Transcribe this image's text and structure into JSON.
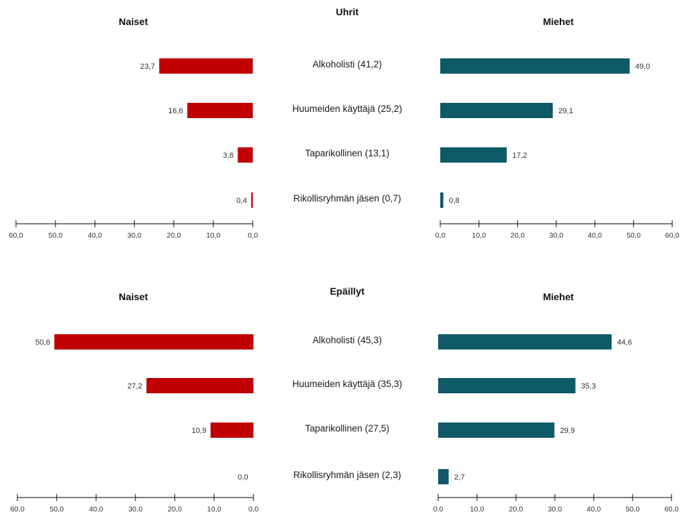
{
  "chart_data": [
    {
      "type": "bar",
      "title": "Uhrit",
      "categories": [
        "Alkoholisti (41,2)",
        "Huumeiden käyttäjä (25,2)",
        "Taparikollinen (13,1)",
        "Rikollisryhmän jäsen (0,7)"
      ],
      "left_panel": {
        "title": "Naiset",
        "values": [
          23.7,
          16.6,
          3.8,
          0.4
        ],
        "labels": [
          "23,7",
          "16,6",
          "3,8",
          "0,4"
        ],
        "color": "#c00000"
      },
      "right_panel": {
        "title": "Miehet",
        "values": [
          49.0,
          29.1,
          17.2,
          0.8
        ],
        "labels": [
          "49,0",
          "29,1",
          "17,2",
          "0,8"
        ],
        "color": "#0e5a66"
      },
      "xlim": [
        0,
        60
      ],
      "ticks": [
        "0,0",
        "10,0",
        "20,0",
        "30,0",
        "40,0",
        "50,0",
        "60,0"
      ]
    },
    {
      "type": "bar",
      "title": "Epäillyt",
      "categories": [
        "Alkoholisti (45,3)",
        "Huumeiden käyttäjä (35,3)",
        "Taparikollinen (27,5)",
        "Rikollisryhmän jäsen (2,3)"
      ],
      "left_panel": {
        "title": "Naiset",
        "values": [
          50.6,
          27.2,
          10.9,
          0.0
        ],
        "labels": [
          "50,6",
          "27,2",
          "10,9",
          "0,0"
        ],
        "color": "#c00000"
      },
      "right_panel": {
        "title": "Miehet",
        "values": [
          44.6,
          35.3,
          29.9,
          2.7
        ],
        "labels": [
          "44,6",
          "35,3",
          "29,9",
          "2,7"
        ],
        "color": "#0e5a66"
      },
      "xlim": [
        0,
        60
      ],
      "ticks": [
        "0,0",
        "10,0",
        "20,0",
        "30,0",
        "40,0",
        "50,0",
        "60,0"
      ]
    }
  ]
}
